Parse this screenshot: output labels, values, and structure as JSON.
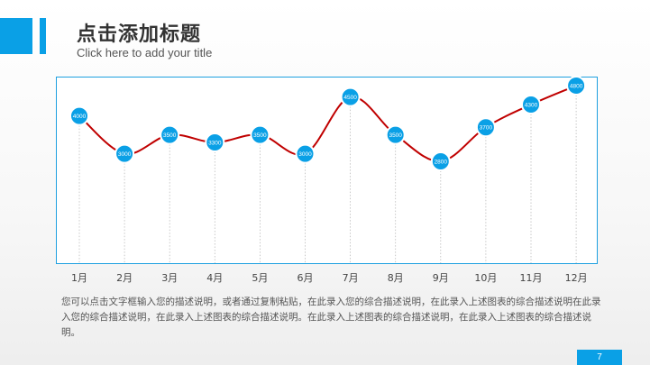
{
  "header": {
    "title": "点击添加标题",
    "subtitle": "Click here to add your title"
  },
  "colors": {
    "accent": "#0aa0e6",
    "line": "#c00000",
    "frame": "#1ea0e0"
  },
  "chart_data": {
    "type": "line",
    "categories": [
      "1月",
      "2月",
      "3月",
      "4月",
      "5月",
      "6月",
      "7月",
      "8月",
      "9月",
      "10月",
      "11月",
      "12月"
    ],
    "series": [
      {
        "values": [
          4000,
          3000,
          3500,
          3300,
          3500,
          3000,
          4500,
          3500,
          2800,
          3700,
          4300,
          4800
        ]
      }
    ],
    "data_labels": true,
    "grid": "vertical dotted droplines",
    "smooth": true
  },
  "description": "您可以点击文字框输入您的描述说明，或者通过复制粘贴，在此录入您的综合描述说明，在此录入上述图表的综合描述说明在此录入您的综合描述说明，在此录入上述图表的综合描述说明。在此录入上述图表的综合描述说明，在此录入上述图表的综合描述说明。",
  "page_number": "7"
}
